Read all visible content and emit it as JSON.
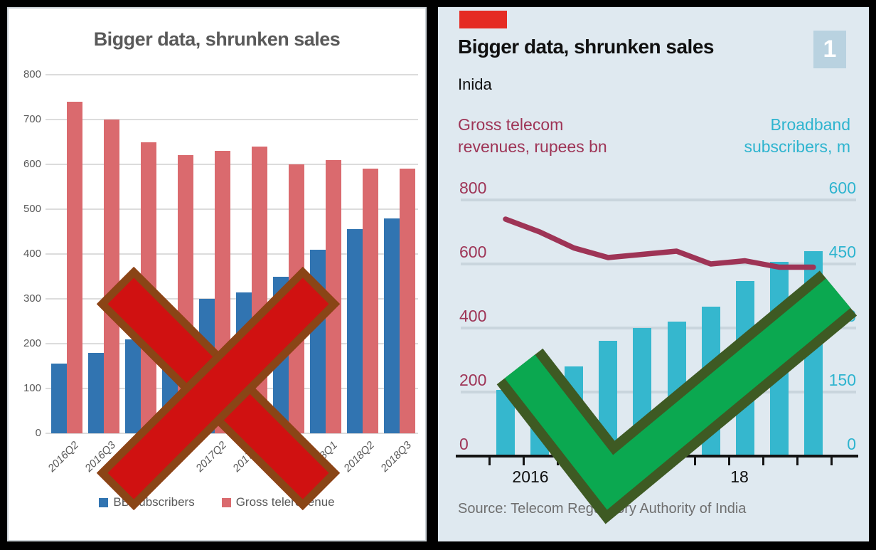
{
  "chart_data": [
    {
      "id": "excel-version",
      "type": "bar",
      "title": "Bigger data, shrunken sales",
      "categories": [
        "2016Q2",
        "2016Q3",
        "2016Q4",
        "2017Q1",
        "2017Q2",
        "2017Q3",
        "2017Q4",
        "2018Q1",
        "2018Q2",
        "2018Q3"
      ],
      "series": [
        {
          "name": "BB subscribers",
          "color": "#3174b1",
          "values": [
            155,
            180,
            210,
            270,
            300,
            315,
            350,
            410,
            455,
            480
          ]
        },
        {
          "name": "Gross telerevenue",
          "color": "#da6a6e",
          "values": [
            740,
            700,
            650,
            620,
            630,
            640,
            600,
            610,
            590,
            590
          ]
        }
      ],
      "ylim": [
        0,
        800
      ],
      "y_tick_step": 100,
      "grid": true,
      "legend_position": "bottom",
      "annotation": "rejected-red-cross"
    },
    {
      "id": "economist-version",
      "type": "bar+line dual-axis",
      "title": "Bigger data, shrunken sales",
      "subtitle": "Inida",
      "tag_number": "1",
      "left_axis": {
        "label_lines": [
          "Gross telecom",
          "revenues,  rupees bn"
        ],
        "color": "#9e3456",
        "ticks": [
          800,
          600,
          400,
          200,
          0
        ],
        "lim": [
          0,
          800
        ]
      },
      "right_axis": {
        "label_lines": [
          "Broadband",
          "subscribers, m"
        ],
        "color": "#2eb4cf",
        "ticks": [
          600,
          450,
          300,
          150,
          0
        ],
        "lim": [
          0,
          600
        ]
      },
      "x_labels": [
        "2016",
        "17",
        "18"
      ],
      "series": [
        {
          "name": "Gross telecom revenues, rupees bn",
          "type": "line",
          "axis": "left",
          "color": "#9e3456",
          "values": [
            740,
            700,
            650,
            620,
            630,
            640,
            600,
            610,
            590,
            590
          ]
        },
        {
          "name": "Broadband subscribers, m",
          "type": "bar",
          "axis": "right",
          "color": "#35b7ce",
          "values": [
            155,
            180,
            210,
            270,
            300,
            315,
            350,
            410,
            455,
            480
          ]
        }
      ],
      "source": "Source: Telecom Regulatory Authority of India",
      "annotation": "approved-green-check",
      "colors": {
        "background": "#dfe9f0",
        "tag": "#e52b23",
        "badge": "#b9d2e0",
        "gridline": "#c9d5dd",
        "axis": "#131313",
        "source_text": "#6f6f6f"
      }
    }
  ],
  "overlays": {
    "cross": {
      "fill": "#d01111",
      "border": "#8a4516"
    },
    "check": {
      "fill": "#0ba850",
      "border": "#3e5a23"
    }
  }
}
